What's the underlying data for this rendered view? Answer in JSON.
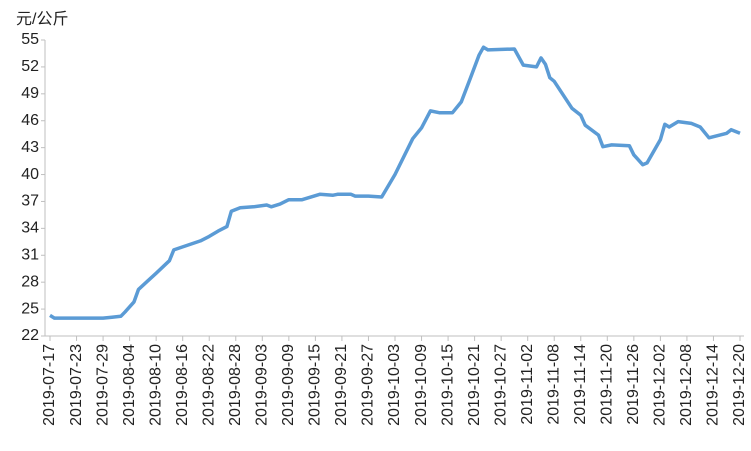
{
  "chart_data": {
    "type": "line",
    "y_label": "元/公斤",
    "x": [
      "2019-07-17",
      "2019-07-18",
      "2019-07-29",
      "2019-07-31",
      "2019-08-02",
      "2019-08-03",
      "2019-08-05",
      "2019-08-06",
      "2019-08-08",
      "2019-08-10",
      "2019-08-13",
      "2019-08-14",
      "2019-08-17",
      "2019-08-20",
      "2019-08-22",
      "2019-08-24",
      "2019-08-26",
      "2019-08-27",
      "2019-08-29",
      "2019-09-01",
      "2019-09-04",
      "2019-09-05",
      "2019-09-07",
      "2019-09-09",
      "2019-09-12",
      "2019-09-16",
      "2019-09-19",
      "2019-09-20",
      "2019-09-23",
      "2019-09-24",
      "2019-09-27",
      "2019-09-30",
      "2019-10-03",
      "2019-10-07",
      "2019-10-09",
      "2019-10-11",
      "2019-10-13",
      "2019-10-16",
      "2019-10-18",
      "2019-10-20",
      "2019-10-22",
      "2019-10-23",
      "2019-10-24",
      "2019-10-30",
      "2019-11-01",
      "2019-11-04",
      "2019-11-05",
      "2019-11-06",
      "2019-11-07",
      "2019-11-08",
      "2019-11-12",
      "2019-11-14",
      "2019-11-15",
      "2019-11-18",
      "2019-11-19",
      "2019-11-21",
      "2019-11-25",
      "2019-11-26",
      "2019-11-28",
      "2019-11-29",
      "2019-12-02",
      "2019-12-03",
      "2019-12-04",
      "2019-12-06",
      "2019-12-09",
      "2019-12-11",
      "2019-12-13",
      "2019-12-17",
      "2019-12-18",
      "2019-12-20"
    ],
    "series": [
      {
        "color": "#5b9bd5",
        "values": [
          24.3,
          24.0,
          24.0,
          24.1,
          24.2,
          24.7,
          25.8,
          27.2,
          28.1,
          29.0,
          30.4,
          31.6,
          32.1,
          32.6,
          33.1,
          33.7,
          34.2,
          35.9,
          36.3,
          36.4,
          36.6,
          36.4,
          36.7,
          37.2,
          37.2,
          37.8,
          37.7,
          37.8,
          37.8,
          37.6,
          37.6,
          37.5,
          40.0,
          44.0,
          45.2,
          47.1,
          46.9,
          46.9,
          48.1,
          50.7,
          53.3,
          54.2,
          53.9,
          54.0,
          52.2,
          52.0,
          53.0,
          52.3,
          50.8,
          50.4,
          47.4,
          46.6,
          45.5,
          44.4,
          43.1,
          43.3,
          43.2,
          42.2,
          41.1,
          41.3,
          43.9,
          45.6,
          45.3,
          45.9,
          45.7,
          45.3,
          44.1,
          44.6,
          45.0,
          44.6
        ]
      }
    ],
    "xlim": [
      "2019-07-17",
      "2019-12-20"
    ],
    "xticks": [
      "2019-07-17",
      "2019-07-23",
      "2019-07-29",
      "2019-08-04",
      "2019-08-10",
      "2019-08-16",
      "2019-08-22",
      "2019-08-28",
      "2019-09-03",
      "2019-09-09",
      "2019-09-15",
      "2019-09-21",
      "2019-09-27",
      "2019-10-03",
      "2019-10-09",
      "2019-10-15",
      "2019-10-21",
      "2019-10-27",
      "2019-11-02",
      "2019-11-08",
      "2019-11-14",
      "2019-11-20",
      "2019-11-26",
      "2019-12-02",
      "2019-12-08",
      "2019-12-14",
      "2019-12-20"
    ],
    "ylim": [
      22,
      55
    ],
    "yticks": [
      22,
      25,
      28,
      31,
      34,
      37,
      40,
      43,
      46,
      49,
      52,
      55
    ],
    "grid": false
  }
}
